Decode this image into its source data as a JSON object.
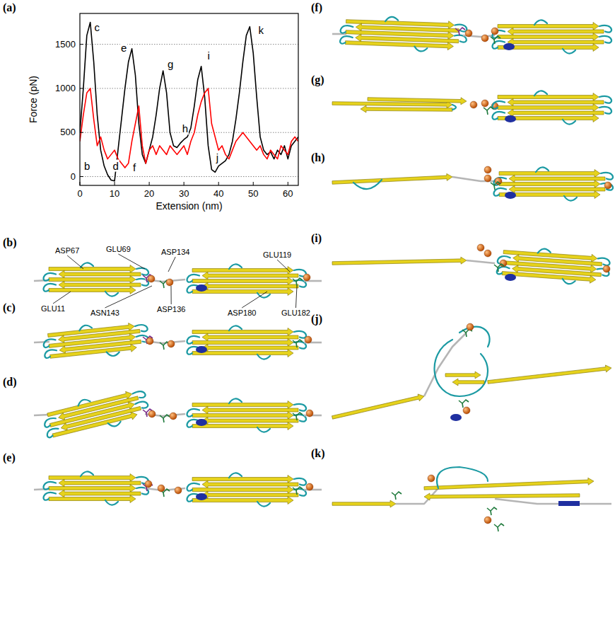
{
  "chart_data": {
    "type": "line",
    "xlabel": "Extension (nm)",
    "ylabel": "Force (pN)",
    "x": [
      0,
      1,
      2,
      3,
      4,
      5,
      6,
      7,
      8,
      9,
      10,
      11,
      12,
      13,
      14,
      15,
      16,
      17,
      18,
      19,
      20,
      21,
      22,
      23,
      24,
      25,
      26,
      27,
      28,
      29,
      30,
      31,
      32,
      33,
      34,
      35,
      36,
      37,
      38,
      39,
      40,
      41,
      42,
      43,
      44,
      45,
      46,
      47,
      48,
      49,
      50,
      51,
      52,
      53,
      54,
      55,
      56,
      57,
      58,
      59,
      60,
      61,
      62,
      63
    ],
    "series": [
      {
        "color": "#000000",
        "values": [
          500,
          1000,
          1600,
          1750,
          1300,
          700,
          300,
          120,
          20,
          -40,
          -50,
          300,
          650,
          1000,
          1300,
          1450,
          1150,
          600,
          250,
          150,
          300,
          450,
          700,
          1000,
          1200,
          950,
          500,
          350,
          330,
          380,
          420,
          450,
          550,
          800,
          1100,
          1250,
          900,
          350,
          80,
          50,
          120,
          150,
          180,
          250,
          400,
          650,
          950,
          1300,
          1600,
          1700,
          1400,
          900,
          450,
          300,
          250,
          280,
          200,
          300,
          250,
          350,
          200,
          350,
          400,
          450
        ]
      },
      {
        "color": "#ff0000",
        "values": [
          400,
          700,
          950,
          1000,
          650,
          350,
          450,
          300,
          200,
          250,
          300,
          200,
          150,
          100,
          150,
          400,
          600,
          800,
          350,
          150,
          300,
          350,
          250,
          350,
          300,
          250,
          350,
          300,
          250,
          300,
          350,
          250,
          400,
          500,
          700,
          850,
          950,
          1000,
          600,
          450,
          300,
          350,
          250,
          200,
          300,
          400,
          450,
          500,
          450,
          400,
          350,
          300,
          350,
          250,
          200,
          300,
          250,
          200,
          350,
          300,
          250,
          400,
          450,
          400
        ]
      }
    ],
    "xlim": [
      0,
      63
    ],
    "ylim": [
      -100,
      1850
    ],
    "xticks": [
      0,
      10,
      20,
      30,
      40,
      50,
      60
    ],
    "yticks": [
      0,
      500,
      1000,
      1500
    ],
    "grid": true,
    "annotations": [
      {
        "text": "c",
        "x": 4.2,
        "y": 1650
      },
      {
        "text": "e",
        "x": 11.8,
        "y": 1420
      },
      {
        "text": "g",
        "x": 25.3,
        "y": 1230
      },
      {
        "text": "i",
        "x": 36.8,
        "y": 1330
      },
      {
        "text": "k",
        "x": 51.5,
        "y": 1620
      },
      {
        "text": "b",
        "x": 1.2,
        "y": 80
      },
      {
        "text": "d",
        "x": 9.5,
        "y": 80
      },
      {
        "text": "f",
        "x": 15.3,
        "y": 60
      },
      {
        "text": "h",
        "x": 29.5,
        "y": 500
      },
      {
        "text": "j",
        "x": 39.3,
        "y": 170
      }
    ]
  },
  "panel_labels": [
    "(a)",
    "(b)",
    "(c)",
    "(d)",
    "(e)",
    "(f)",
    "(g)",
    "(h)",
    "(i)",
    "(j)",
    "(k)"
  ],
  "residue_labels": [
    "ASP67",
    "GLU69",
    "ASP134",
    "GLU119",
    "GLU11",
    "ASN143",
    "ASP136",
    "ASP180",
    "GLU182"
  ]
}
